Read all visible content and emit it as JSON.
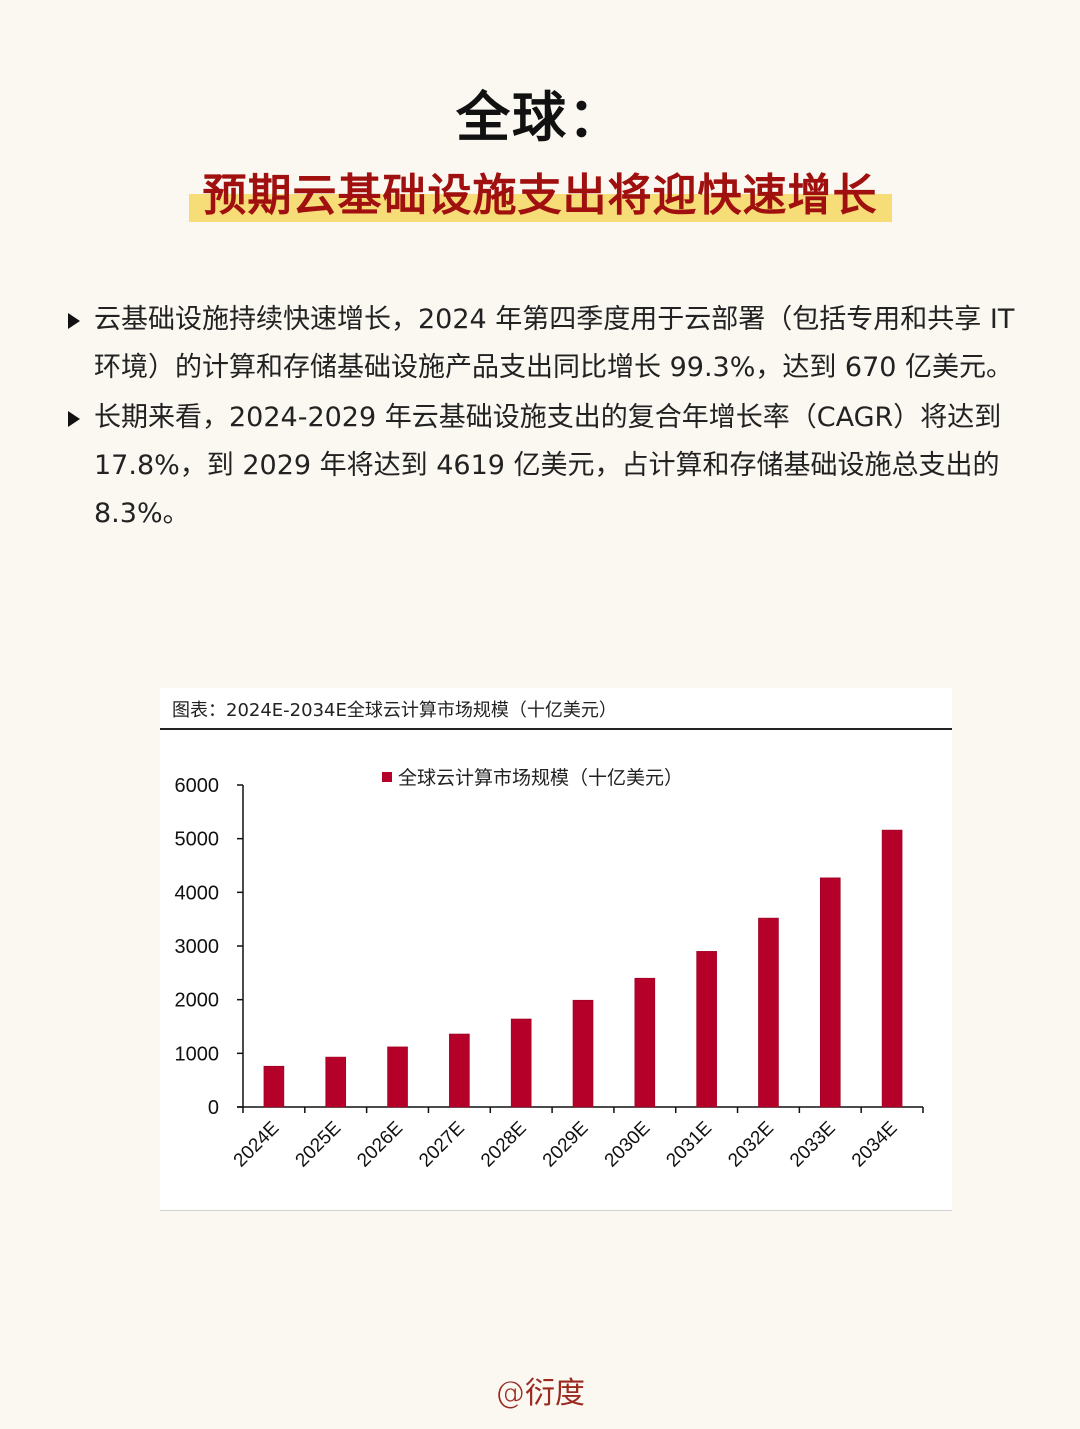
{
  "header": {
    "title": "全球：",
    "subtitle": "预期云基础设施支出将迎快速增长"
  },
  "bullets": [
    {
      "text": "云基础设施持续快速增长，2024 年第四季度用于云部署（包括专用和共享 IT 环境）的计算和存储基础设施产品支出同比增长 99.3%，达到 670 亿美元。"
    },
    {
      "text": "长期来看，2024-2029 年云基础设施支出的复合年增长率（CAGR）将达到 17.8%，到 2029 年将达到 4619 亿美元，占计算和存储基础设施总支出的 8.3%。"
    }
  ],
  "chart": {
    "caption": "图表：2024E-2034E全球云计算市场规模（十亿美元）",
    "legend_label": "全球云计算市场规模（十亿美元）",
    "bar_color": "#b5002a"
  },
  "chart_data": {
    "type": "bar",
    "title": "2024E-2034E全球云计算市场规模（十亿美元）",
    "xlabel": "",
    "ylabel": "",
    "categories": [
      "2024E",
      "2025E",
      "2026E",
      "2027E",
      "2028E",
      "2029E",
      "2030E",
      "2031E",
      "2032E",
      "2033E",
      "2034E"
    ],
    "series": [
      {
        "name": "全球云计算市场规模（十亿美元）",
        "values": [
          760,
          930,
          1120,
          1360,
          1640,
          1990,
          2400,
          2900,
          3520,
          4270,
          5160
        ]
      }
    ],
    "yticks": [
      0,
      1000,
      2000,
      3000,
      4000,
      5000,
      6000
    ],
    "ylim": [
      0,
      6000
    ],
    "grid": false,
    "legend_position": "top"
  },
  "footer": {
    "watermark": "@衍度"
  }
}
